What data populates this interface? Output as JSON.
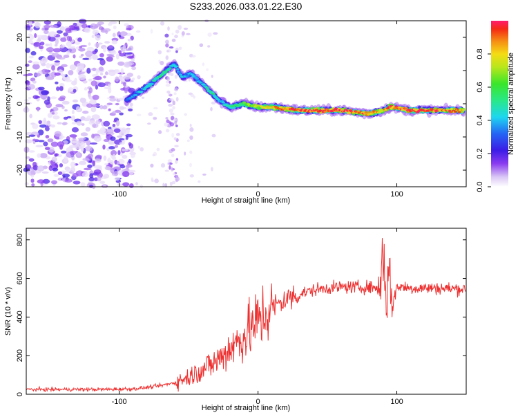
{
  "title": "S233.2026.033.01.22.E30",
  "chart_data": [
    {
      "type": "heatmap",
      "xlabel": "Height of straight line (km)",
      "ylabel": "Frequency (Hz)",
      "xlim": [
        -167,
        150
      ],
      "ylim": [
        -25,
        25
      ],
      "xticks": [
        -100,
        0,
        100
      ],
      "yticks": [
        20,
        10,
        0,
        -10,
        -20
      ],
      "colorbar": {
        "label": "Normalized spectral amplitude",
        "range": [
          0,
          1
        ],
        "ticks": [
          0.0,
          0.2,
          0.4,
          0.6,
          0.8
        ]
      },
      "ridge": {
        "description_points_x": [
          -95,
          -88,
          -80,
          -72,
          -66,
          -60,
          -55,
          -48,
          -40,
          -33,
          -28,
          -20,
          -10,
          0,
          10,
          30,
          60,
          80,
          90,
          95,
          110,
          130,
          148
        ],
        "description_points_y": [
          1,
          3,
          5,
          8,
          10,
          12,
          8,
          9,
          6,
          3,
          1,
          -1,
          0,
          -1,
          -1,
          -2,
          -2,
          -3,
          -2,
          -1,
          -2,
          -2,
          -2
        ],
        "intensity": [
          0.3,
          0.4,
          0.4,
          0.5,
          0.5,
          0.4,
          0.4,
          0.4,
          0.4,
          0.5,
          0.4,
          0.5,
          0.6,
          0.7,
          0.8,
          0.95,
          0.95,
          0.85,
          0.8,
          0.9,
          0.95,
          0.9,
          0.85
        ]
      }
    },
    {
      "type": "line",
      "xlabel": "Height of straight line (km)",
      "ylabel": "SNR (10 * v/v)",
      "xlim": [
        -167,
        150
      ],
      "ylim": [
        0,
        860
      ],
      "xticks": [
        -100,
        0,
        100
      ],
      "yticks": [
        0,
        200,
        400,
        600,
        800
      ],
      "color": "#ee3030",
      "series": [
        {
          "name": "SNR",
          "x": [
            -167,
            -140,
            -110,
            -90,
            -80,
            -70,
            -60,
            -50,
            -40,
            -30,
            -20,
            -10,
            0,
            10,
            20,
            30,
            40,
            50,
            60,
            70,
            80,
            88,
            90,
            92,
            95,
            97,
            100,
            110,
            130,
            150
          ],
          "y": [
            25,
            25,
            25,
            28,
            35,
            45,
            60,
            90,
            130,
            170,
            240,
            300,
            380,
            450,
            490,
            520,
            540,
            550,
            555,
            555,
            555,
            550,
            760,
            560,
            600,
            450,
            560,
            550,
            550,
            545
          ]
        }
      ]
    }
  ]
}
